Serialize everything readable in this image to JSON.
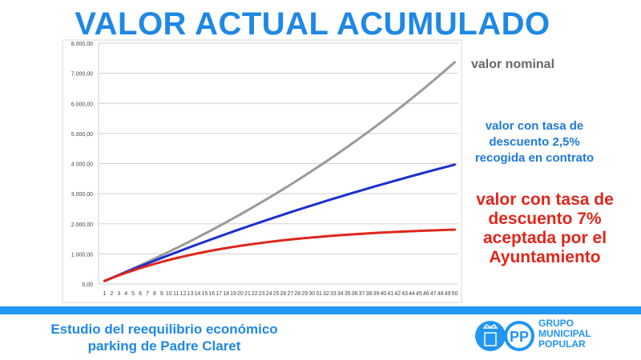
{
  "title": "VALOR ACTUAL ACUMULADO",
  "legend": {
    "nominal": "valor nominal",
    "blue": [
      "valor con tasa de",
      "descuento 2,5%",
      "recogida en contrato"
    ],
    "red": [
      "valor con tasa de",
      "descuento 7%",
      "aceptada por el",
      "Ayuntamiento"
    ]
  },
  "footer": [
    "Estudio del reequilibrio económico",
    "parking de Padre Claret"
  ],
  "logo": {
    "text": [
      "GRUPO",
      "MUNICIPAL",
      "POPULAR"
    ],
    "mark": "PP"
  },
  "colors": {
    "title": "#1e88e5",
    "nominal": "#9a9a9a",
    "blue": "#1a2fd0",
    "red": "#e0261b"
  },
  "chart_data": {
    "type": "line",
    "title": "VALOR ACTUAL ACUMULADO",
    "xlabel": "",
    "ylabel": "",
    "ylim": [
      0,
      8000
    ],
    "yticks": [
      "0,00",
      "1.000,00",
      "2.000,00",
      "3.000,00",
      "4.000,00",
      "5.000,00",
      "6.000,00",
      "7.000,00",
      "8.000,00"
    ],
    "x": [
      1,
      2,
      3,
      4,
      5,
      6,
      7,
      8,
      9,
      10,
      11,
      12,
      13,
      14,
      15,
      16,
      17,
      18,
      19,
      20,
      21,
      22,
      23,
      24,
      25,
      26,
      27,
      28,
      29,
      30,
      31,
      32,
      33,
      34,
      35,
      36,
      37,
      38,
      39,
      40,
      41,
      42,
      43,
      44,
      45,
      46,
      47,
      48,
      49,
      50
    ],
    "grid": true,
    "legend_placement": "right",
    "series": [
      {
        "name": "valor nominal",
        "color": "#9a9a9a",
        "values": [
          100,
          201,
          305,
          409,
          515,
          623,
          732,
          843,
          956,
          1070,
          1186,
          1304,
          1424,
          1545,
          1668,
          1793,
          1920,
          2049,
          2180,
          2312,
          2447,
          2584,
          2723,
          2863,
          3006,
          3151,
          3299,
          3448,
          3600,
          3754,
          3910,
          4069,
          4230,
          4393,
          4559,
          4728,
          4899,
          5072,
          5248,
          5427,
          5608,
          5792,
          5979,
          6169,
          6361,
          6557,
          6755,
          6957,
          7161,
          7368
        ]
      },
      {
        "name": "valor con tasa de descuento 2,5% recogida en contrato",
        "color": "#1a2fd0",
        "values": [
          100,
          199,
          297,
          394,
          490,
          586,
          680,
          773,
          866,
          957,
          1048,
          1138,
          1227,
          1315,
          1402,
          1488,
          1573,
          1658,
          1742,
          1825,
          1907,
          1988,
          2069,
          2148,
          2227,
          2305,
          2383,
          2459,
          2535,
          2610,
          2684,
          2758,
          2831,
          2903,
          2974,
          3045,
          3115,
          3184,
          3253,
          3321,
          3388,
          3455,
          3521,
          3586,
          3651,
          3715,
          3778,
          3841,
          3903,
          3964
        ]
      },
      {
        "name": "valor con tasa de descuento 7% aceptada por el Ayuntamiento",
        "color": "#e0261b",
        "values": [
          100,
          195,
          285,
          370,
          451,
          528,
          601,
          670,
          735,
          797,
          857,
          912,
          966,
          1016,
          1064,
          1109,
          1152,
          1193,
          1231,
          1268,
          1303,
          1336,
          1367,
          1397,
          1425,
          1452,
          1477,
          1501,
          1524,
          1546,
          1566,
          1586,
          1604,
          1622,
          1638,
          1654,
          1669,
          1683,
          1697,
          1710,
          1722,
          1733,
          1744,
          1754,
          1764,
          1774,
          1782,
          1791,
          1799,
          1806
        ]
      }
    ]
  }
}
